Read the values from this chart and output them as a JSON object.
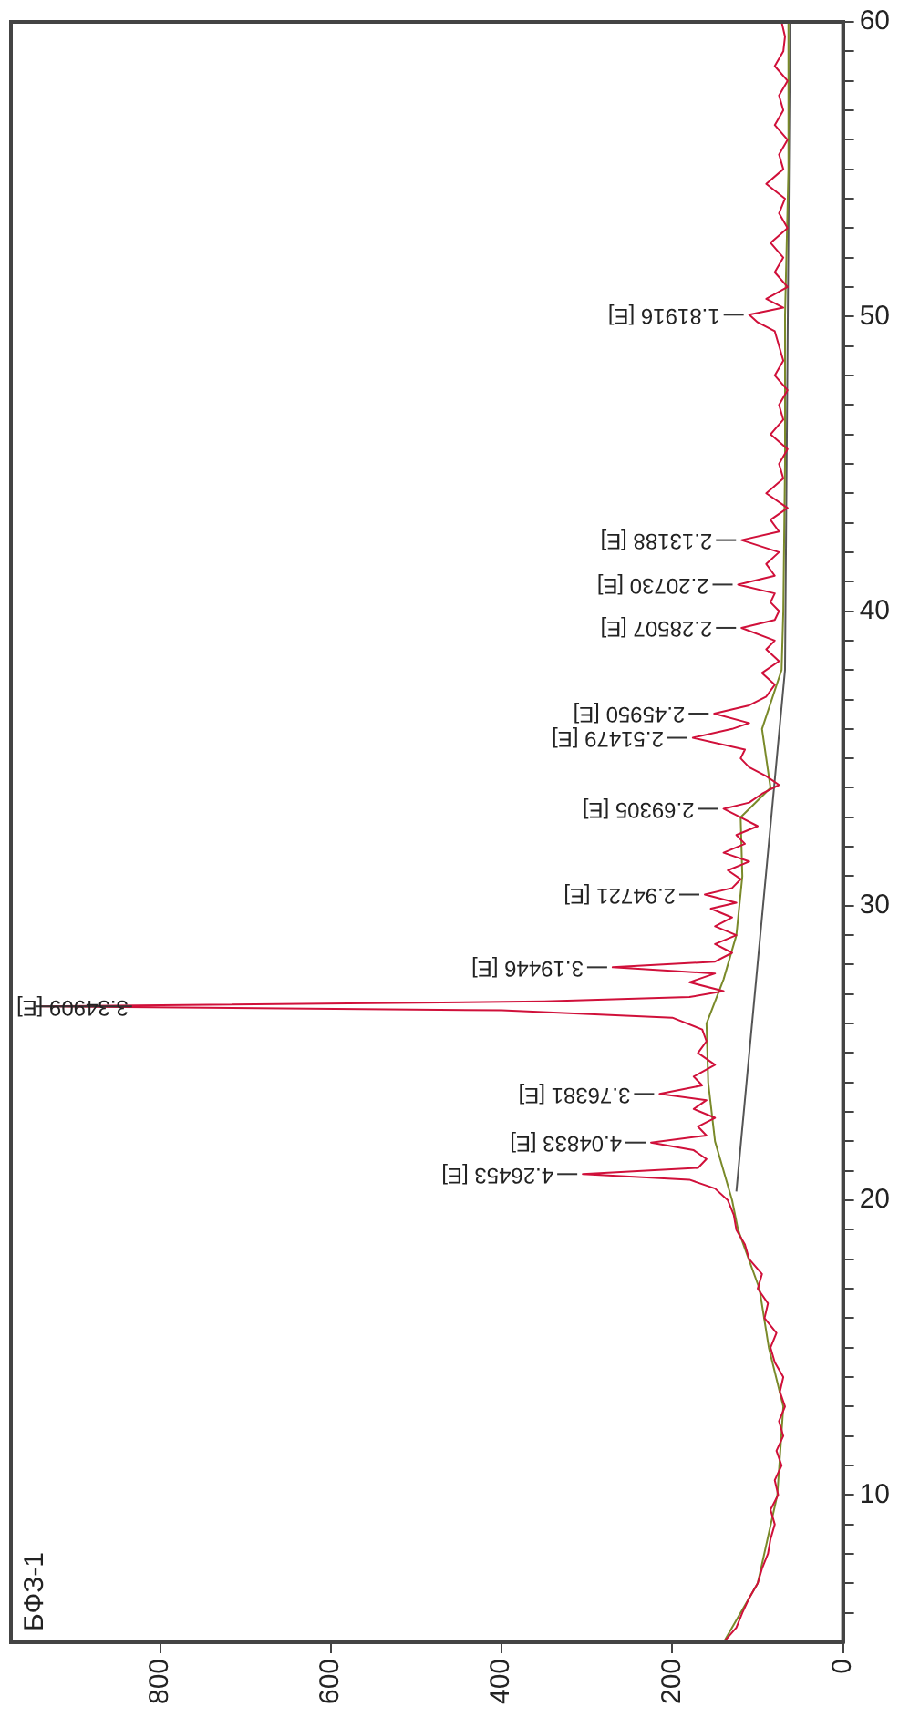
{
  "chart_data": {
    "type": "line",
    "title": "БФЗ-1",
    "orientation": "horizontal",
    "ylim": [
      5,
      60
    ],
    "yticks": [
      {
        "value": 6,
        "label": null
      },
      {
        "value": 7,
        "label": null
      },
      {
        "value": 8,
        "label": null
      },
      {
        "value": 9,
        "label": null
      },
      10,
      {
        "value": 11,
        "label": null
      },
      {
        "value": 12,
        "label": null
      },
      {
        "value": 13,
        "label": null
      },
      {
        "value": 14,
        "label": null
      },
      {
        "value": 15,
        "label": null
      },
      {
        "value": 16,
        "label": null
      },
      {
        "value": 17,
        "label": null
      },
      {
        "value": 18,
        "label": null
      },
      {
        "value": 19,
        "label": null
      },
      20,
      {
        "value": 21,
        "label": null
      },
      {
        "value": 22,
        "label": null
      },
      {
        "value": 23,
        "label": null
      },
      {
        "value": 24,
        "label": null
      },
      {
        "value": 25,
        "label": null
      },
      {
        "value": 26,
        "label": null
      },
      {
        "value": 27,
        "label": null
      },
      {
        "value": 28,
        "label": null
      },
      {
        "value": 29,
        "label": null
      },
      30,
      {
        "value": 31,
        "label": null
      },
      {
        "value": 32,
        "label": null
      },
      {
        "value": 33,
        "label": null
      },
      {
        "value": 34,
        "label": null
      },
      {
        "value": 35,
        "label": null
      },
      {
        "value": 36,
        "label": null
      },
      {
        "value": 37,
        "label": null
      },
      {
        "value": 38,
        "label": null
      },
      {
        "value": 39,
        "label": null
      },
      40,
      {
        "value": 41,
        "label": null
      },
      {
        "value": 42,
        "label": null
      },
      {
        "value": 43,
        "label": null
      },
      {
        "value": 44,
        "label": null
      },
      {
        "value": 45,
        "label": null
      },
      {
        "value": 46,
        "label": null
      },
      {
        "value": 47,
        "label": null
      },
      {
        "value": 48,
        "label": null
      },
      {
        "value": 49,
        "label": null
      },
      50,
      {
        "value": 51,
        "label": null
      },
      {
        "value": 52,
        "label": null
      },
      {
        "value": 53,
        "label": null
      },
      {
        "value": 54,
        "label": null
      },
      {
        "value": 55,
        "label": null
      },
      {
        "value": 56,
        "label": null
      },
      {
        "value": 57,
        "label": null
      },
      {
        "value": 58,
        "label": null
      },
      {
        "value": 59,
        "label": null
      },
      60
    ],
    "xlim": [
      975,
      0
    ],
    "xticks": [
      0,
      200,
      400,
      600,
      800
    ],
    "grid": false,
    "legend": false,
    "marker": "none",
    "line_style": "solid",
    "series": [
      {
        "color": "#d0103a",
        "x": [
          5,
          5.5,
          6,
          6.5,
          7,
          7.5,
          8,
          8.5,
          9,
          9.5,
          10,
          10.5,
          11,
          11.5,
          12,
          12.5,
          13,
          13.5,
          14,
          14.5,
          15,
          15.5,
          16,
          16.5,
          17,
          17.5,
          18,
          18.5,
          19,
          19.5,
          20,
          20.4,
          20.7,
          20.89,
          21.1,
          21.4,
          21.7,
          21.96,
          22.2,
          22.5,
          22.8,
          23.1,
          23.4,
          23.61,
          23.9,
          24.2,
          24.6,
          25,
          25.4,
          25.8,
          26.2,
          26.45,
          26.58,
          26.75,
          26.9,
          27.1,
          27.4,
          27.7,
          27.91,
          28.1,
          28.4,
          28.7,
          29,
          29.3,
          29.6,
          29.9,
          30.1,
          30.38,
          30.6,
          30.9,
          31.2,
          31.5,
          31.8,
          32.1,
          32.4,
          32.7,
          33,
          33.29,
          33.5,
          33.8,
          34.1,
          34.4,
          34.7,
          35,
          35.3,
          35.7,
          36,
          36.2,
          36.52,
          36.8,
          37.1,
          37.5,
          37.9,
          38.3,
          38.7,
          39,
          39.43,
          39.7,
          40,
          40.3,
          40.6,
          40.9,
          41.2,
          41.6,
          42,
          42.41,
          42.7,
          43.1,
          43.5,
          44,
          44.5,
          45,
          45.5,
          46,
          46.5,
          47,
          47.5,
          48,
          48.5,
          49,
          49.5,
          49.8,
          50.06,
          50.3,
          50.6,
          51,
          51.5,
          52,
          52.5,
          53,
          53.5,
          54,
          54.5,
          55,
          55.5,
          56,
          56.5,
          57,
          57.5,
          58,
          58.5,
          59,
          59.5,
          60
        ],
        "values": [
          140,
          125,
          118,
          110,
          100,
          95,
          88,
          85,
          80,
          85,
          76,
          80,
          72,
          78,
          70,
          75,
          68,
          74,
          70,
          80,
          85,
          78,
          92,
          88,
          100,
          95,
          110,
          115,
          125,
          128,
          135,
          150,
          180,
          305,
          170,
          160,
          175,
          225,
          160,
          170,
          150,
          175,
          160,
          215,
          165,
          175,
          150,
          170,
          160,
          165,
          200,
          400,
          940,
          350,
          180,
          140,
          180,
          150,
          270,
          150,
          130,
          150,
          125,
          150,
          130,
          155,
          125,
          162,
          130,
          120,
          135,
          110,
          140,
          115,
          125,
          100,
          120,
          140,
          110,
          95,
          75,
          90,
          110,
          120,
          115,
          176,
          130,
          110,
          151,
          110,
          90,
          80,
          95,
          75,
          90,
          80,
          119,
          80,
          75,
          85,
          80,
          123,
          80,
          90,
          75,
          119,
          75,
          85,
          65,
          90,
          70,
          75,
          65,
          85,
          70,
          75,
          65,
          80,
          70,
          75,
          80,
          100,
          110,
          70,
          90,
          65,
          80,
          70,
          85,
          65,
          75,
          68,
          90,
          70,
          75,
          65,
          80,
          70,
          75,
          65,
          80,
          70,
          68,
          72
        ]
      },
      {
        "color": "#7a8a2a",
        "x": [
          5,
          7,
          10,
          13,
          15,
          17,
          19,
          20,
          22,
          24,
          26,
          27.5,
          29,
          31,
          33,
          34,
          36,
          38,
          40,
          45,
          50,
          55,
          60
        ],
        "values": [
          140,
          100,
          77,
          70,
          87,
          98,
          123,
          130,
          150,
          158,
          160,
          140,
          125,
          118,
          120,
          85,
          95,
          72,
          70,
          68,
          68,
          64,
          64
        ]
      },
      {
        "color": "#555555",
        "x": [
          20.3,
          38,
          60
        ],
        "values": [
          125,
          68,
          62
        ]
      }
    ],
    "annotations": [
      {
        "text": "4.26453 [E]",
        "x": 305,
        "y": 20.89
      },
      {
        "text": "4.04833 [E]",
        "x": 225,
        "y": 21.96
      },
      {
        "text": "3.76381 [E]",
        "x": 215,
        "y": 23.61
      },
      {
        "text": "3.34909 [E]",
        "x": 940,
        "y": 26.58
      },
      {
        "text": "3.19446 [E]",
        "x": 270,
        "y": 27.91
      },
      {
        "text": "2.94721 [E]",
        "x": 162,
        "y": 30.38
      },
      {
        "text": "2.69305 [E]",
        "x": 140,
        "y": 33.29
      },
      {
        "text": "2.51479 [E]",
        "x": 176,
        "y": 35.7
      },
      {
        "text": "2.45950 [E]",
        "x": 151,
        "y": 36.52
      },
      {
        "text": "2.28507 [E]",
        "x": 119,
        "y": 39.43
      },
      {
        "text": "2.20730 [E]",
        "x": 123,
        "y": 40.9
      },
      {
        "text": "2.13188 [E]",
        "x": 119,
        "y": 42.41
      },
      {
        "text": "1.81916 [E]",
        "x": 110,
        "y": 50.06
      }
    ]
  }
}
